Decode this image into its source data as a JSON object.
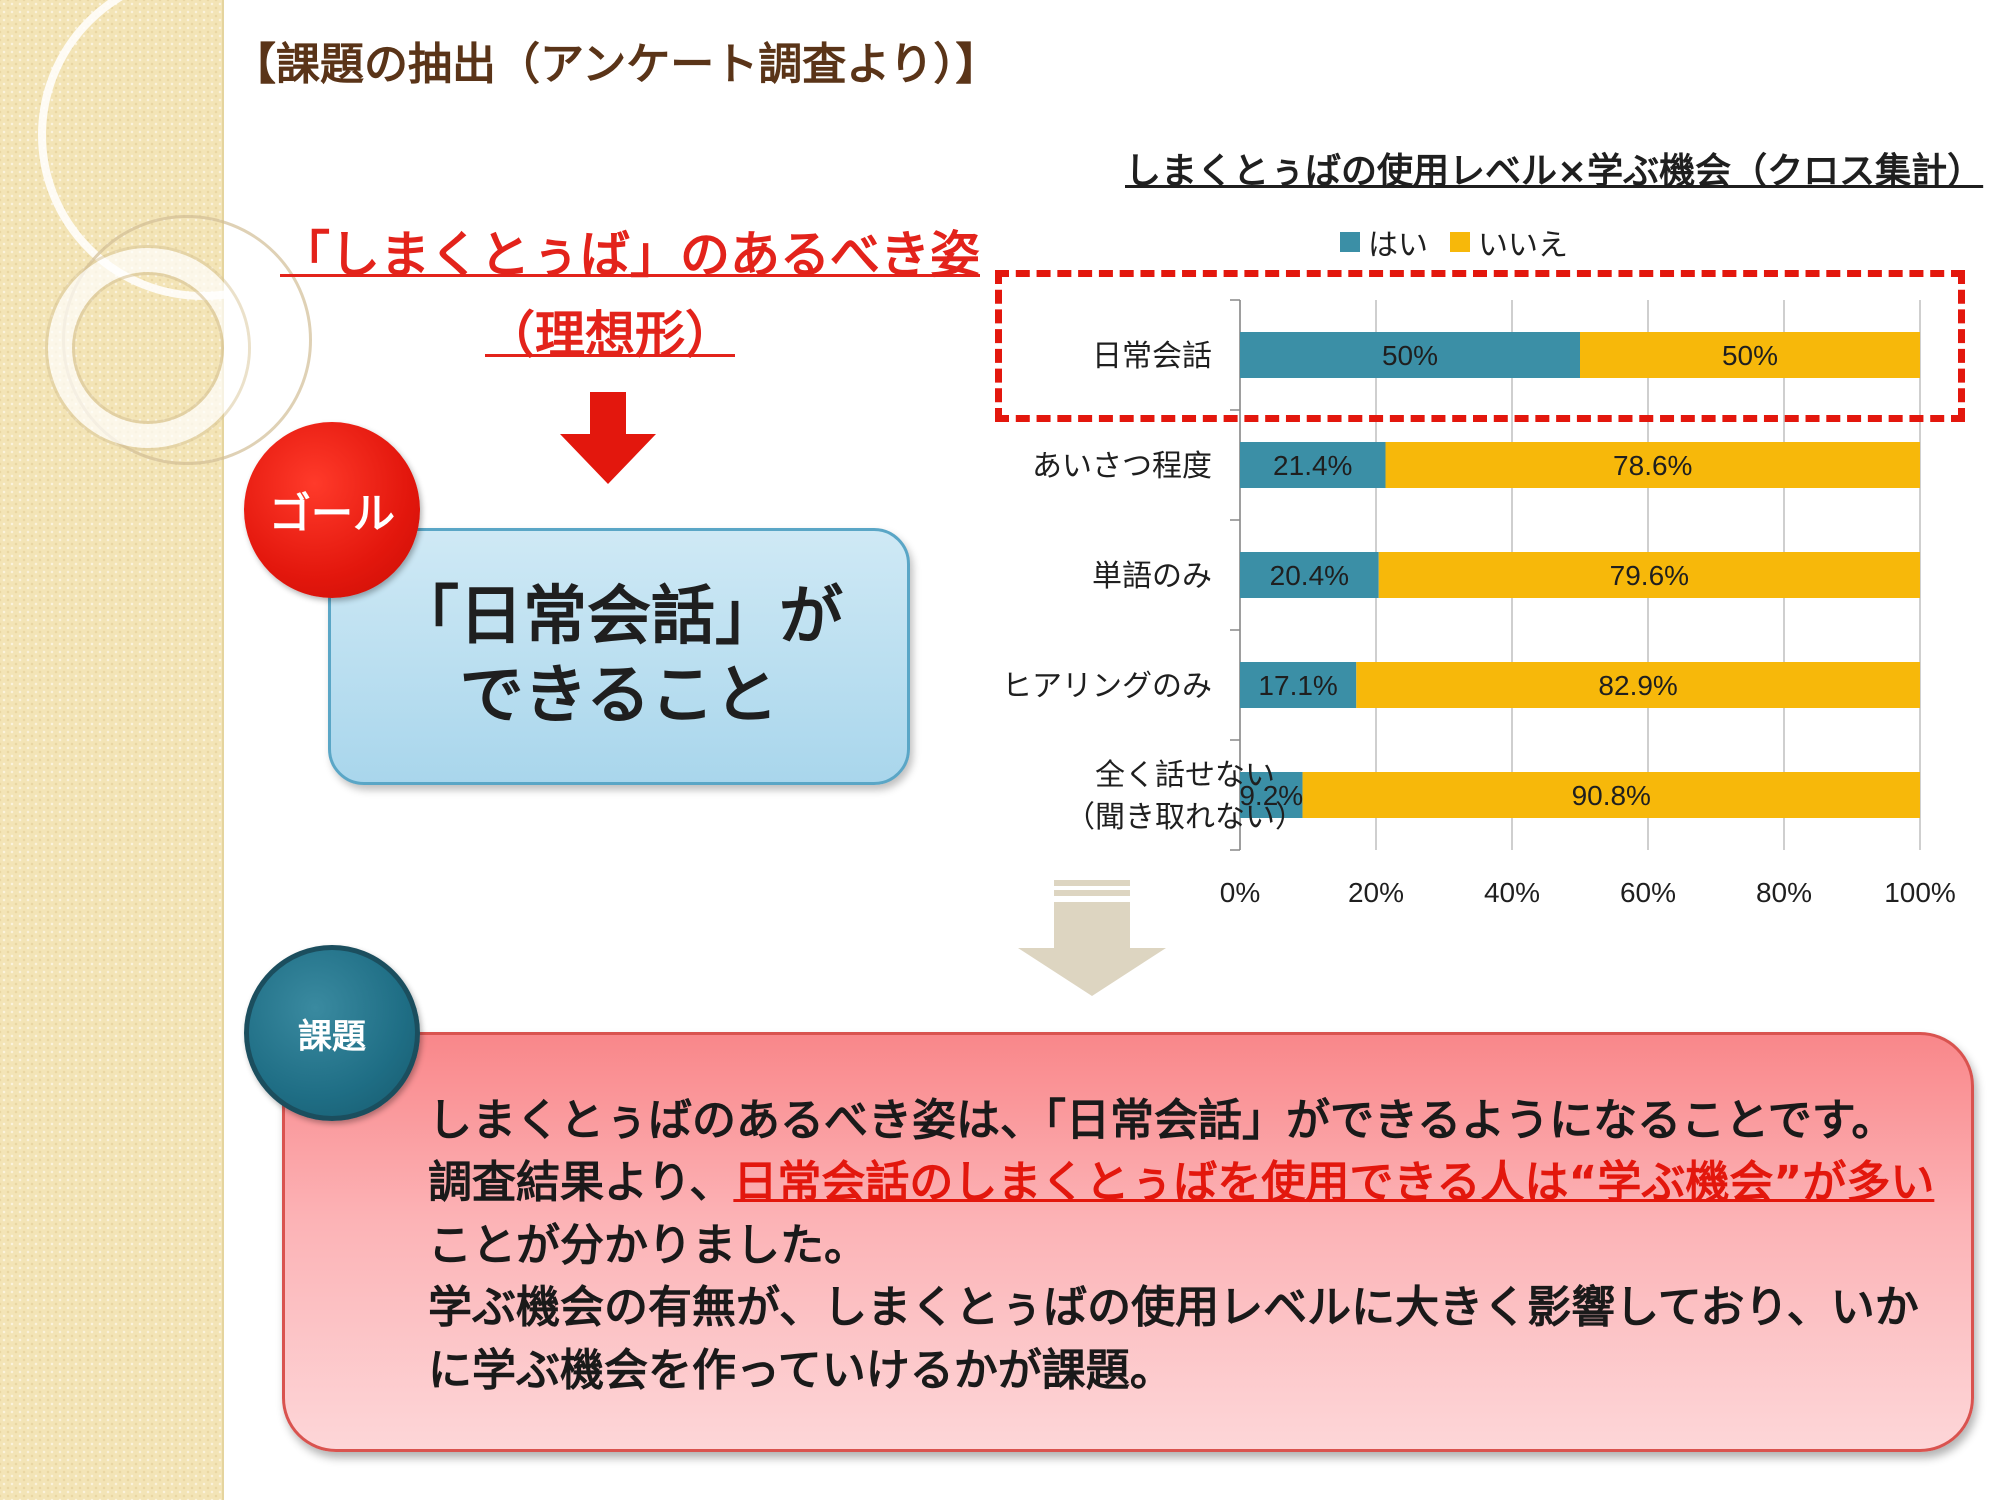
{
  "slide_title": "【課題の抽出（アンケート調査より）】",
  "ideal": {
    "line1": "「しまくとぅば」のあるべき姿",
    "line2": "（理想形）"
  },
  "goal": {
    "badge_label": "ゴール",
    "text_line1": "「日常会話」が",
    "text_line2": "できること"
  },
  "chart_data": {
    "type": "bar",
    "orientation": "horizontal",
    "stacked": "percent",
    "title": "しまくとぅばの使用レベル×学ぶ機会（クロス集計）",
    "categories": [
      "日常会話",
      "あいさつ程度",
      "単語のみ",
      "ヒアリングのみ",
      "全く話せない（聞き取れない）"
    ],
    "category_lines": [
      [
        "日常会話"
      ],
      [
        "あいさつ程度"
      ],
      [
        "単語のみ"
      ],
      [
        "ヒアリングのみ"
      ],
      [
        "全く話せない",
        "（聞き取れない）"
      ]
    ],
    "series": [
      {
        "name": "はい",
        "color": "#3b8fa6",
        "values": [
          50,
          21.4,
          20.4,
          17.1,
          9.2
        ],
        "labels": [
          "50%",
          "21.4%",
          "20.4%",
          "17.1%",
          "9.2%"
        ]
      },
      {
        "name": "いいえ",
        "color": "#f7b80a",
        "values": [
          50,
          78.6,
          79.6,
          82.9,
          90.8
        ],
        "labels": [
          "50%",
          "78.6%",
          "79.6%",
          "82.9%",
          "90.8%"
        ]
      }
    ],
    "x_ticks": [
      "0%",
      "20%",
      "40%",
      "60%",
      "80%",
      "100%"
    ],
    "xlim": [
      0,
      100
    ],
    "legend_position": "top",
    "grid": true,
    "highlighted_category": "日常会話"
  },
  "issue": {
    "badge_label": "課題",
    "p1": "しまくとぅばのあるべき姿は、「日常会話」ができるようになることです。",
    "p2_prefix": "調査結果より、",
    "p2_emph": "日常会話のしまくとぅばを使用できる人は“学ぶ機会”が多い",
    "p2_suffix": "ことが分かりました。",
    "p3": "学ぶ機会の有無が、しまくとぅばの使用レベルに大きく影響しており、いかに学ぶ機会を作っていけるかが課題。"
  },
  "colors": {
    "red": "#e3170d",
    "teal": "#3b8fa6",
    "yellow": "#f7b80a",
    "title_brown": "#5a3418"
  }
}
